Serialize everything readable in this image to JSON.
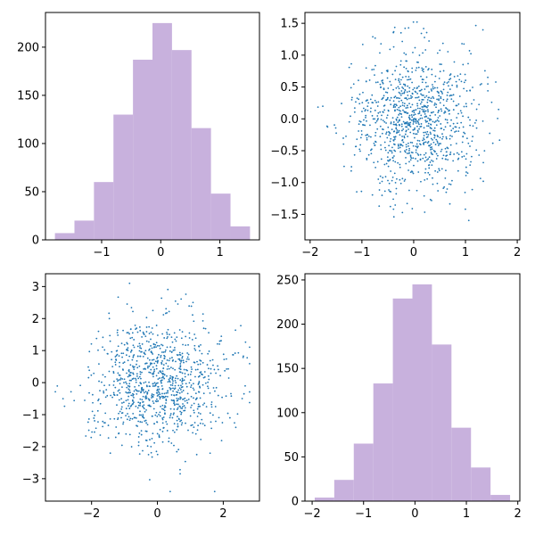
{
  "colors": {
    "hist_fill": "#c8b1dd",
    "scatter": "#1f77b4",
    "axes": "#000000"
  },
  "chart_data": [
    {
      "type": "bar",
      "subtype": "histogram",
      "position": "top-left",
      "bin_edges": [
        -1.79,
        -1.46,
        -1.13,
        -0.8,
        -0.47,
        -0.14,
        0.19,
        0.52,
        0.85,
        1.18,
        1.51
      ],
      "values": [
        7,
        20,
        60,
        130,
        187,
        225,
        197,
        116,
        48,
        14
      ],
      "xlim": [
        -1.95,
        1.67
      ],
      "ylim": [
        0,
        236
      ],
      "xticks": [
        -1,
        0,
        1
      ],
      "yticks": [
        0,
        50,
        100,
        150,
        200
      ],
      "grid": false
    },
    {
      "type": "scatter",
      "position": "top-right",
      "n_points": 1000,
      "x_mean": 0.0,
      "x_std": 0.6,
      "y_mean": 0.0,
      "y_std": 0.55,
      "x_range": [
        -1.95,
        1.9
      ],
      "y_range": [
        -1.75,
        1.52
      ],
      "xlim": [
        -2.1,
        2.05
      ],
      "ylim": [
        -1.9,
        1.67
      ],
      "xticks": [
        -2,
        -1,
        0,
        1,
        2
      ],
      "yticks": [
        -1.5,
        -1.0,
        -0.5,
        0.0,
        0.5,
        1.0,
        1.5
      ],
      "grid": false
    },
    {
      "type": "scatter",
      "position": "bottom-left",
      "n_points": 1000,
      "x_mean": 0.0,
      "x_std": 1.0,
      "y_mean": 0.0,
      "y_std": 1.0,
      "x_range": [
        -3.1,
        2.8
      ],
      "y_range": [
        -3.4,
        3.1
      ],
      "xlim": [
        -3.4,
        3.1
      ],
      "ylim": [
        -3.7,
        3.4
      ],
      "xticks": [
        -2,
        0,
        2
      ],
      "yticks": [
        -3,
        -2,
        -1,
        0,
        1,
        2,
        3
      ],
      "grid": false
    },
    {
      "type": "bar",
      "subtype": "histogram",
      "position": "bottom-right",
      "bin_edges": [
        -1.95,
        -1.57,
        -1.19,
        -0.81,
        -0.43,
        -0.05,
        0.33,
        0.71,
        1.09,
        1.47,
        1.85
      ],
      "values": [
        4,
        24,
        65,
        133,
        229,
        245,
        177,
        83,
        38,
        7
      ],
      "xlim": [
        -2.14,
        2.04
      ],
      "ylim": [
        0,
        257
      ],
      "xticks": [
        -2,
        -1,
        0,
        1,
        2
      ],
      "yticks": [
        0,
        50,
        100,
        150,
        200,
        250
      ],
      "grid": false
    }
  ]
}
